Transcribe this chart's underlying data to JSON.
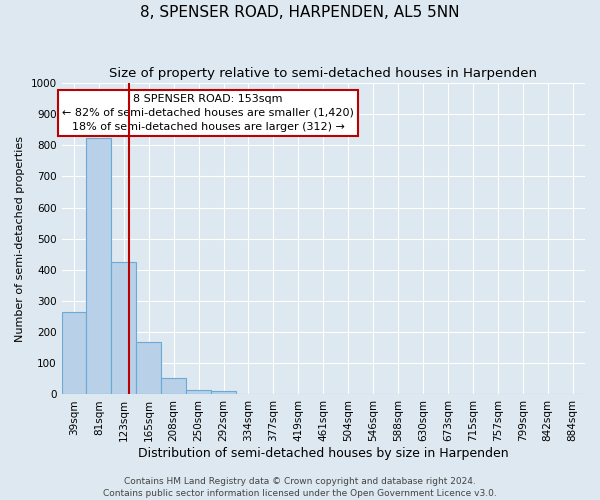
{
  "title": "8, SPENSER ROAD, HARPENDEN, AL5 5NN",
  "subtitle": "Size of property relative to semi-detached houses in Harpenden",
  "xlabel": "Distribution of semi-detached houses by size in Harpenden",
  "ylabel": "Number of semi-detached properties",
  "bar_labels": [
    "39sqm",
    "81sqm",
    "123sqm",
    "165sqm",
    "208sqm",
    "250sqm",
    "292sqm",
    "334sqm",
    "377sqm",
    "419sqm",
    "461sqm",
    "504sqm",
    "546sqm",
    "588sqm",
    "630sqm",
    "673sqm",
    "715sqm",
    "757sqm",
    "799sqm",
    "842sqm",
    "884sqm"
  ],
  "bar_heights": [
    265,
    825,
    425,
    170,
    52,
    15,
    10,
    0,
    0,
    0,
    0,
    0,
    0,
    0,
    0,
    0,
    0,
    0,
    0,
    0,
    0
  ],
  "bar_color": "#b8d0e8",
  "bar_edge_color": "#6aaad4",
  "bar_width": 1.0,
  "ylim": [
    0,
    1000
  ],
  "yticks": [
    0,
    100,
    200,
    300,
    400,
    500,
    600,
    700,
    800,
    900,
    1000
  ],
  "vline_color": "#bb0000",
  "annotation_title": "8 SPENSER ROAD: 153sqm",
  "annotation_line1": "← 82% of semi-detached houses are smaller (1,420)",
  "annotation_line2": "18% of semi-detached houses are larger (312) →",
  "annotation_box_color": "#ffffff",
  "annotation_box_edge_color": "#bb0000",
  "background_color": "#dde8f0",
  "grid_color": "#ffffff",
  "footer_line1": "Contains HM Land Registry data © Crown copyright and database right 2024.",
  "footer_line2": "Contains public sector information licensed under the Open Government Licence v3.0.",
  "title_fontsize": 11,
  "subtitle_fontsize": 9.5,
  "xlabel_fontsize": 9,
  "ylabel_fontsize": 8,
  "tick_fontsize": 7.5,
  "annotation_fontsize": 8,
  "footer_fontsize": 6.5
}
